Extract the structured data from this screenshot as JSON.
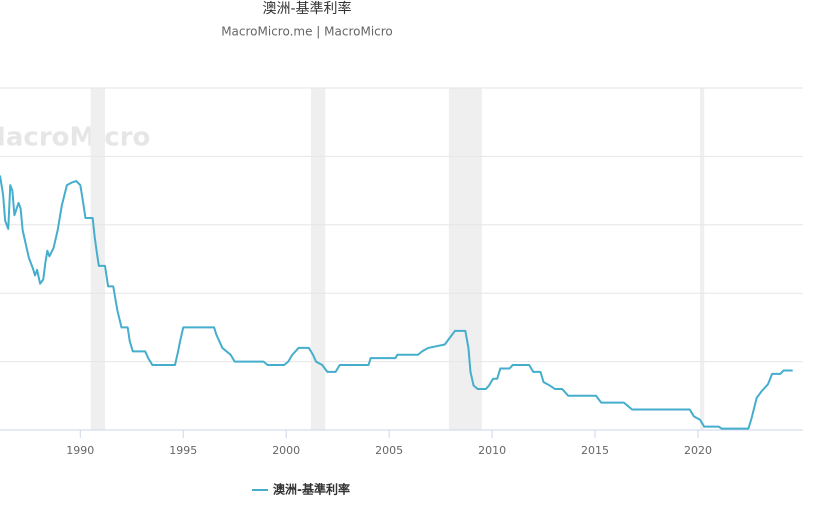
{
  "chart_data": {
    "type": "line",
    "title": "澳洲-基準利率",
    "subtitle": "MacroMicro.me | MacroMicro",
    "watermark": "MacroMicro",
    "xlim": [
      1986.1,
      2025.1
    ],
    "xticks": [
      1990,
      1995,
      2000,
      2005,
      2010,
      2015,
      2020
    ],
    "ylim": [
      0,
      25
    ],
    "yticks": [
      0,
      5,
      10,
      15,
      20,
      25
    ],
    "grid": true,
    "legend": "bottom",
    "recessions": [
      [
        1990.5,
        1991.2
      ],
      [
        2001.2,
        2001.9
      ],
      [
        2007.9,
        2009.5
      ],
      [
        2020.1,
        2020.3
      ]
    ],
    "series": [
      {
        "name": "澳洲-基準利率",
        "color": "#45aecc",
        "x": [
          1986.1,
          1986.25,
          1986.35,
          1986.5,
          1986.6,
          1986.7,
          1986.8,
          1987.0,
          1987.1,
          1987.2,
          1987.5,
          1987.7,
          1987.8,
          1987.9,
          1988.05,
          1988.2,
          1988.3,
          1988.4,
          1988.5,
          1988.7,
          1988.9,
          1989.1,
          1989.35,
          1989.6,
          1989.8,
          1990.0,
          1990.1,
          1990.25,
          1990.6,
          1990.7,
          1990.8,
          1990.9,
          1991.2,
          1991.35,
          1991.6,
          1991.8,
          1992.0,
          1992.3,
          1992.4,
          1992.55,
          1993.15,
          1993.3,
          1993.5,
          1994.6,
          1994.75,
          1994.85,
          1995.0,
          1996.5,
          1996.6,
          1996.9,
          1997.3,
          1997.5,
          1998.9,
          1999.1,
          1999.9,
          2000.1,
          2000.3,
          2000.6,
          2001.1,
          2001.3,
          2001.45,
          2001.75,
          2002.0,
          2002.4,
          2002.6,
          2004.0,
          2004.1,
          2005.3,
          2005.4,
          2006.4,
          2006.6,
          2006.9,
          2007.7,
          2007.95,
          2008.2,
          2008.7,
          2008.85,
          2008.95,
          2009.1,
          2009.3,
          2009.7,
          2009.85,
          2010.05,
          2010.25,
          2010.4,
          2010.85,
          2011.0,
          2011.8,
          2012.0,
          2012.35,
          2012.5,
          2012.8,
          2013.05,
          2013.4,
          2013.7,
          2015.05,
          2015.3,
          2015.5,
          2016.4,
          2016.6,
          2016.8,
          2019.6,
          2019.8,
          2020.1,
          2020.3,
          2021.0,
          2021.15,
          2022.45,
          2022.6,
          2022.85,
          2023.1,
          2023.4,
          2023.6,
          2024.0,
          2024.15,
          2024.6
        ],
        "values": [
          18.6,
          17.2,
          15.3,
          14.7,
          17.9,
          17.5,
          15.7,
          16.6,
          16.2,
          14.6,
          12.6,
          11.8,
          11.3,
          11.7,
          10.7,
          11.0,
          12.2,
          13.1,
          12.7,
          13.3,
          14.6,
          16.4,
          17.9,
          18.1,
          18.2,
          17.9,
          17.0,
          15.5,
          15.5,
          14.1,
          13.0,
          12.0,
          12.0,
          10.5,
          10.5,
          8.75,
          7.5,
          7.5,
          6.5,
          5.75,
          5.75,
          5.25,
          4.75,
          4.75,
          5.75,
          6.5,
          7.5,
          7.5,
          7.0,
          6.0,
          5.5,
          5.0,
          5.0,
          4.75,
          4.75,
          5.0,
          5.5,
          6.0,
          6.0,
          5.5,
          5.0,
          4.75,
          4.25,
          4.25,
          4.75,
          4.75,
          5.25,
          5.25,
          5.5,
          5.5,
          5.75,
          6.0,
          6.25,
          6.75,
          7.25,
          7.25,
          6.0,
          4.25,
          3.25,
          3.0,
          3.0,
          3.25,
          3.75,
          3.75,
          4.5,
          4.5,
          4.75,
          4.75,
          4.25,
          4.25,
          3.5,
          3.25,
          3.0,
          3.0,
          2.5,
          2.5,
          2.0,
          2.0,
          2.0,
          1.75,
          1.5,
          1.5,
          1.0,
          0.75,
          0.25,
          0.25,
          0.1,
          0.1,
          0.85,
          2.35,
          2.85,
          3.35,
          4.1,
          4.1,
          4.35,
          4.35
        ]
      }
    ]
  }
}
